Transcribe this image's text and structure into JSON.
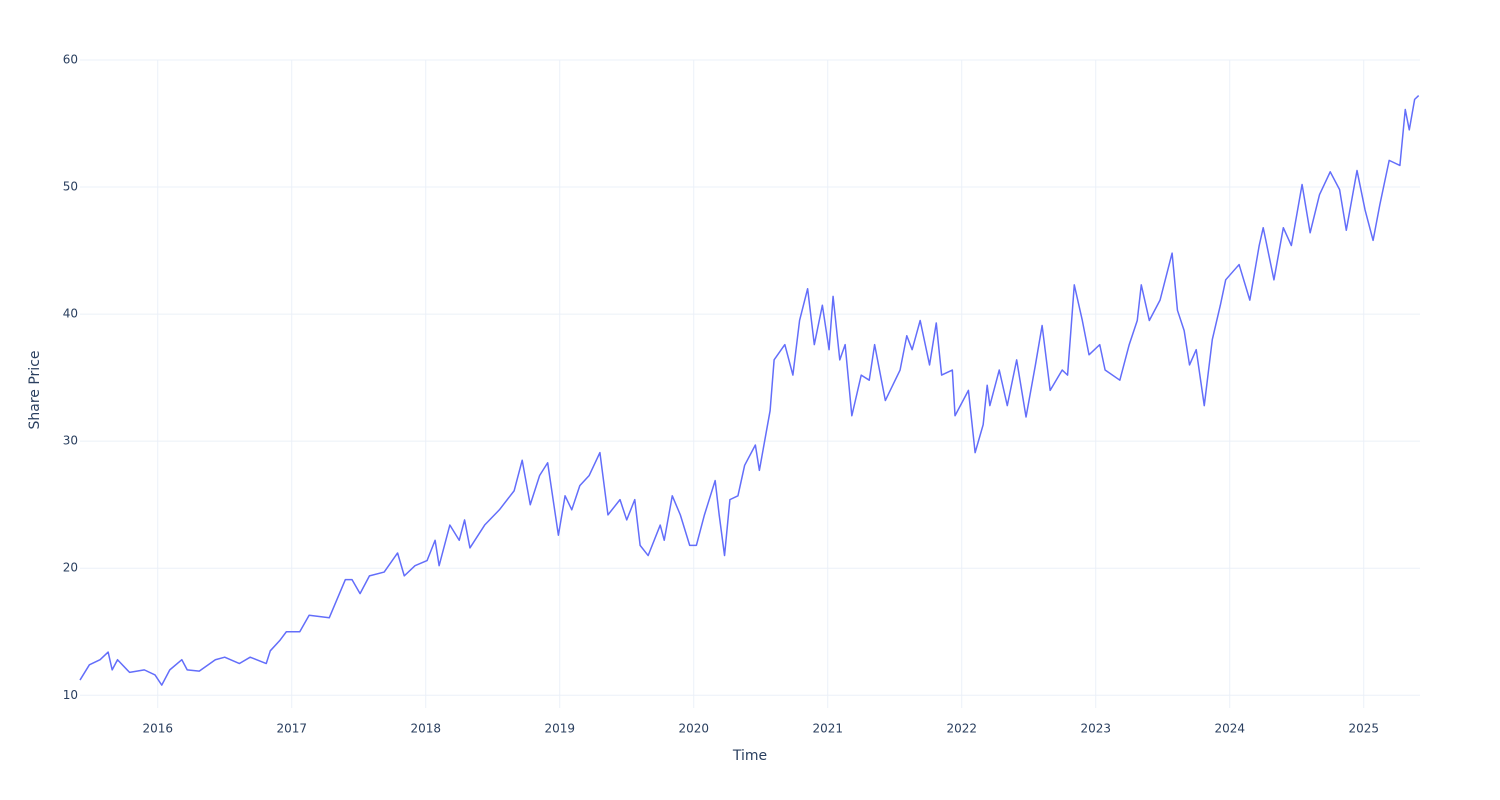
{
  "chart_data": {
    "type": "line",
    "x_label": "Time",
    "y_label": "Share Price",
    "x": [
      2015.42,
      2015.49,
      2015.57,
      2015.63,
      2015.66,
      2015.7,
      2015.79,
      2015.9,
      2015.98,
      2016.03,
      2016.09,
      2016.18,
      2016.22,
      2016.31,
      2016.43,
      2016.5,
      2016.61,
      2016.69,
      2016.81,
      2016.84,
      2016.91,
      2016.96,
      2017.06,
      2017.13,
      2017.28,
      2017.4,
      2017.45,
      2017.51,
      2017.58,
      2017.69,
      2017.79,
      2017.84,
      2017.92,
      2018.01,
      2018.07,
      2018.1,
      2018.18,
      2018.25,
      2018.29,
      2018.33,
      2018.44,
      2018.55,
      2018.66,
      2018.72,
      2018.78,
      2018.85,
      2018.91,
      2018.99,
      2019.04,
      2019.09,
      2019.15,
      2019.22,
      2019.3,
      2019.36,
      2019.45,
      2019.5,
      2019.56,
      2019.6,
      2019.66,
      2019.75,
      2019.78,
      2019.84,
      2019.9,
      2019.97,
      2020.02,
      2020.08,
      2020.16,
      2020.19,
      2020.23,
      2020.27,
      2020.33,
      2020.38,
      2020.46,
      2020.49,
      2020.57,
      2020.6,
      2020.68,
      2020.74,
      2020.79,
      2020.85,
      2020.9,
      2020.96,
      2021.01,
      2021.04,
      2021.09,
      2021.13,
      2021.18,
      2021.25,
      2021.31,
      2021.35,
      2021.43,
      2021.54,
      2021.59,
      2021.63,
      2021.69,
      2021.76,
      2021.81,
      2021.85,
      2021.93,
      2021.95,
      2022.05,
      2022.1,
      2022.16,
      2022.19,
      2022.21,
      2022.28,
      2022.34,
      2022.41,
      2022.48,
      2022.55,
      2022.6,
      2022.66,
      2022.75,
      2022.79,
      2022.84,
      2022.9,
      2022.95,
      2023.03,
      2023.07,
      2023.18,
      2023.25,
      2023.31,
      2023.34,
      2023.4,
      2023.48,
      2023.57,
      2023.61,
      2023.66,
      2023.7,
      2023.75,
      2023.81,
      2023.87,
      2023.93,
      2023.97,
      2024.07,
      2024.15,
      2024.22,
      2024.25,
      2024.33,
      2024.4,
      2024.46,
      2024.54,
      2024.6,
      2024.67,
      2024.75,
      2024.82,
      2024.87,
      2024.95,
      2025.01,
      2025.07,
      2025.12,
      2025.19,
      2025.27,
      2025.31,
      2025.34,
      2025.38,
      2025.41
    ],
    "series": [
      {
        "color": "#636efa",
        "values": [
          11.2,
          12.4,
          12.8,
          13.4,
          12.0,
          12.8,
          11.8,
          12.0,
          11.6,
          10.8,
          12.0,
          12.8,
          12.0,
          11.9,
          12.8,
          13.0,
          12.5,
          13.0,
          12.5,
          13.5,
          14.3,
          15.0,
          15.0,
          16.3,
          16.1,
          19.1,
          19.1,
          18.0,
          19.4,
          19.7,
          21.2,
          19.4,
          20.2,
          20.6,
          22.2,
          20.2,
          23.4,
          22.2,
          23.8,
          21.6,
          23.4,
          24.6,
          26.1,
          28.5,
          25.0,
          27.3,
          28.3,
          22.6,
          25.7,
          24.6,
          26.5,
          27.3,
          29.1,
          24.2,
          25.4,
          23.8,
          25.4,
          21.8,
          21.0,
          23.4,
          22.2,
          25.7,
          24.2,
          21.8,
          21.8,
          24.2,
          26.9,
          24.2,
          21.0,
          25.4,
          25.7,
          28.1,
          29.7,
          27.7,
          32.4,
          36.4,
          37.6,
          35.2,
          39.5,
          42.0,
          37.6,
          40.7,
          37.2,
          41.4,
          36.4,
          37.6,
          32.0,
          35.2,
          34.8,
          37.6,
          33.2,
          35.6,
          38.3,
          37.2,
          39.5,
          36.0,
          39.3,
          35.2,
          35.6,
          32.0,
          34.0,
          29.1,
          31.3,
          34.4,
          32.8,
          35.6,
          32.8,
          36.4,
          31.9,
          36.0,
          39.1,
          34.0,
          35.6,
          35.2,
          42.3,
          39.5,
          36.8,
          37.6,
          35.6,
          34.8,
          37.6,
          39.5,
          42.3,
          39.5,
          41.1,
          44.8,
          40.3,
          38.7,
          36.0,
          37.2,
          32.8,
          38.0,
          40.7,
          42.7,
          43.9,
          41.1,
          45.4,
          46.8,
          42.7,
          46.8,
          45.4,
          50.2,
          46.4,
          49.4,
          51.2,
          49.8,
          46.6,
          51.3,
          48.2,
          45.8,
          48.6,
          52.1,
          51.7,
          56.1,
          54.5,
          56.9,
          57.2
        ]
      }
    ],
    "xlim": [
      2015.42,
      2025.42
    ],
    "xticks": [
      2016,
      2017,
      2018,
      2019,
      2020,
      2021,
      2022,
      2023,
      2024,
      2025
    ],
    "ylim": [
      9,
      60
    ],
    "yticks": [
      10,
      20,
      30,
      40,
      50,
      60
    ],
    "grid": true
  }
}
